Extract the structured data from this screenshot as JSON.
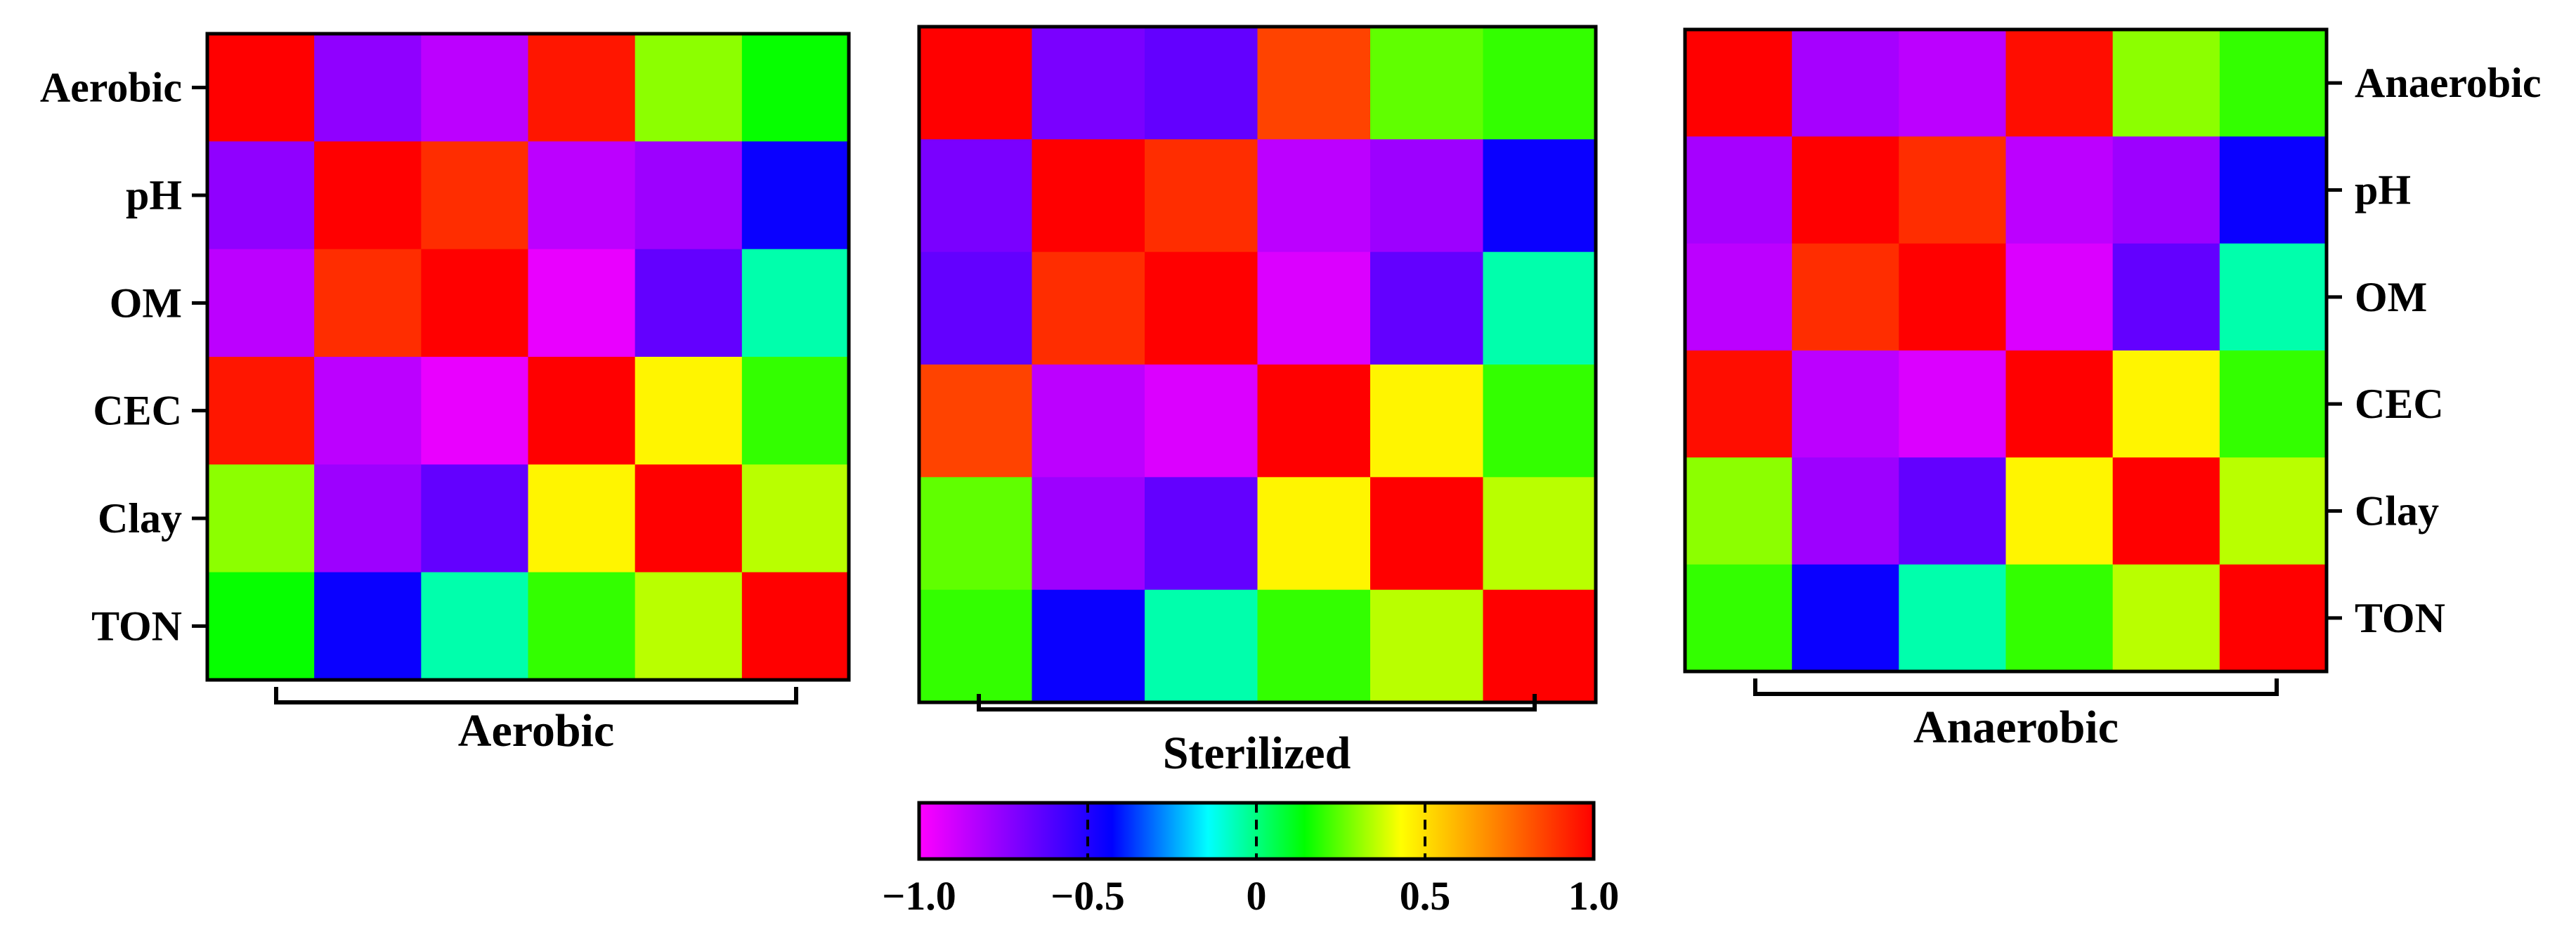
{
  "chart_data": [
    {
      "type": "heatmap",
      "title": "",
      "group_label": "Aerobic",
      "row_labels": [
        "Aerobic",
        "pH",
        "OM",
        "CEC",
        "Clay",
        "TON"
      ],
      "row_labels_side": "left",
      "values": [
        [
          1.0,
          -0.75,
          -0.85,
          0.95,
          0.3,
          0.15
        ],
        [
          -0.75,
          1.0,
          0.9,
          -0.85,
          -0.78,
          -0.45
        ],
        [
          -0.85,
          0.9,
          1.0,
          -0.95,
          -0.65,
          -0.05
        ],
        [
          0.95,
          -0.85,
          -0.95,
          1.0,
          0.45,
          0.2
        ],
        [
          0.3,
          -0.78,
          -0.65,
          0.45,
          1.0,
          0.35
        ],
        [
          0.15,
          -0.45,
          -0.05,
          0.2,
          0.35,
          1.0
        ]
      ]
    },
    {
      "type": "heatmap",
      "title": "",
      "group_label": "Sterilized",
      "row_labels": [],
      "values": [
        [
          1.0,
          -0.7,
          -0.65,
          0.85,
          0.25,
          0.2
        ],
        [
          -0.7,
          1.0,
          0.9,
          -0.85,
          -0.78,
          -0.45
        ],
        [
          -0.65,
          0.9,
          1.0,
          -0.92,
          -0.65,
          -0.05
        ],
        [
          0.85,
          -0.85,
          -0.92,
          1.0,
          0.45,
          0.2
        ],
        [
          0.25,
          -0.78,
          -0.65,
          0.45,
          1.0,
          0.35
        ],
        [
          0.2,
          -0.45,
          -0.05,
          0.2,
          0.35,
          1.0
        ]
      ]
    },
    {
      "type": "heatmap",
      "title": "",
      "group_label": "Anaerobic",
      "row_labels": [
        "Anaerobic",
        "pH",
        "OM",
        "CEC",
        "Clay",
        "TON"
      ],
      "row_labels_side": "right",
      "values": [
        [
          1.0,
          -0.8,
          -0.85,
          0.97,
          0.3,
          0.2
        ],
        [
          -0.8,
          1.0,
          0.9,
          -0.85,
          -0.78,
          -0.45
        ],
        [
          -0.85,
          0.9,
          1.0,
          -0.92,
          -0.65,
          -0.05
        ],
        [
          0.97,
          -0.85,
          -0.92,
          1.0,
          0.45,
          0.2
        ],
        [
          0.3,
          -0.78,
          -0.65,
          0.45,
          1.0,
          0.35
        ],
        [
          0.2,
          -0.45,
          -0.05,
          0.2,
          0.35,
          1.0
        ]
      ]
    }
  ],
  "colorbar": {
    "min": -1.0,
    "max": 1.0,
    "tick_values": [
      -1.0,
      -0.5,
      0,
      0.5,
      1.0
    ],
    "tick_labels": [
      "−1.0",
      "−0.5",
      "0",
      "0.5",
      "1.0"
    ],
    "colors": [
      "#ff00ff",
      "#8000ff",
      "#0000ff",
      "#00ffff",
      "#00ff00",
      "#ffff00",
      "#ff8000",
      "#ff0000"
    ],
    "orientation": "horizontal",
    "position": "bottom"
  }
}
